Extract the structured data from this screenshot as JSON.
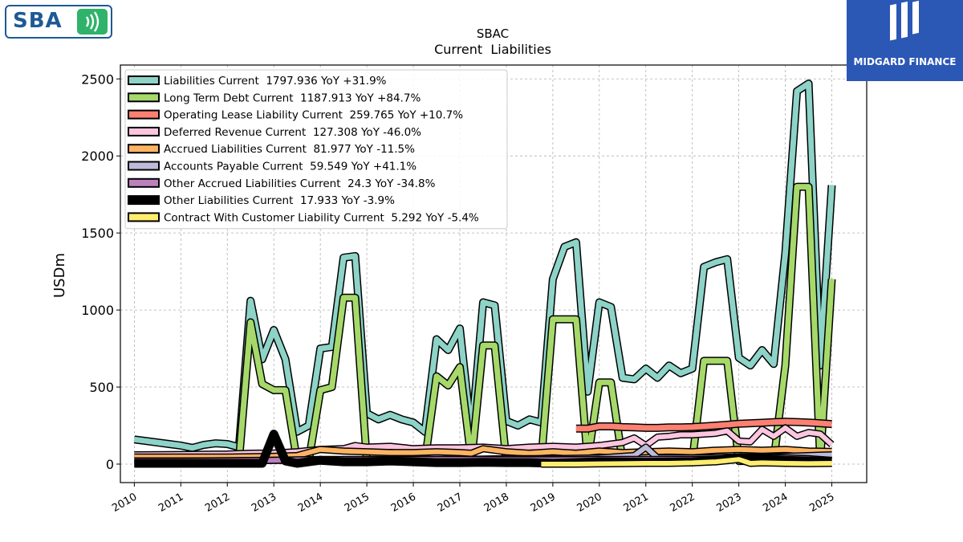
{
  "brand": {
    "logo_text": "SBA",
    "partner_text": "MIDGARD FINANCE"
  },
  "chart_data": {
    "type": "line",
    "title": "SBAC",
    "subtitle": "Current  Liabilities",
    "ylabel": "USDm",
    "xlabel": "",
    "xlim": [
      2009.7,
      2025.75
    ],
    "ylim": [
      -120,
      2590
    ],
    "yticks": [
      0,
      500,
      1000,
      1500,
      2000,
      2500
    ],
    "xticks": [
      2010,
      2011,
      2012,
      2013,
      2014,
      2015,
      2016,
      2017,
      2018,
      2019,
      2020,
      2021,
      2022,
      2023,
      2024,
      2025
    ],
    "grid": true,
    "legend_position": "top-left",
    "series": [
      {
        "name": "Liabilities Current",
        "legend": "Liabilities Current  1797.936 YoY +31.9%",
        "color": "#8dd3c7",
        "width": 7,
        "points": [
          [
            2010.0,
            160
          ],
          [
            2010.25,
            150
          ],
          [
            2010.5,
            140
          ],
          [
            2010.75,
            130
          ],
          [
            2011.0,
            120
          ],
          [
            2011.25,
            105
          ],
          [
            2011.5,
            125
          ],
          [
            2011.75,
            135
          ],
          [
            2012.0,
            130
          ],
          [
            2012.25,
            110
          ],
          [
            2012.5,
            1060
          ],
          [
            2012.75,
            680
          ],
          [
            2013.0,
            870
          ],
          [
            2013.25,
            680
          ],
          [
            2013.5,
            210
          ],
          [
            2013.75,
            250
          ],
          [
            2014.0,
            750
          ],
          [
            2014.25,
            760
          ],
          [
            2014.5,
            1340
          ],
          [
            2014.75,
            1350
          ],
          [
            2015.0,
            330
          ],
          [
            2015.25,
            290
          ],
          [
            2015.5,
            320
          ],
          [
            2015.75,
            290
          ],
          [
            2016.0,
            270
          ],
          [
            2016.25,
            210
          ],
          [
            2016.5,
            810
          ],
          [
            2016.75,
            740
          ],
          [
            2017.0,
            880
          ],
          [
            2017.25,
            190
          ],
          [
            2017.5,
            1050
          ],
          [
            2017.75,
            1030
          ],
          [
            2018.0,
            280
          ],
          [
            2018.25,
            250
          ],
          [
            2018.5,
            290
          ],
          [
            2018.75,
            270
          ],
          [
            2019.0,
            1200
          ],
          [
            2019.25,
            1410
          ],
          [
            2019.5,
            1440
          ],
          [
            2019.75,
            470
          ],
          [
            2020.0,
            1050
          ],
          [
            2020.25,
            1020
          ],
          [
            2020.5,
            560
          ],
          [
            2020.75,
            550
          ],
          [
            2021.0,
            620
          ],
          [
            2021.25,
            560
          ],
          [
            2021.5,
            640
          ],
          [
            2021.75,
            590
          ],
          [
            2022.0,
            620
          ],
          [
            2022.25,
            1280
          ],
          [
            2022.5,
            1310
          ],
          [
            2022.75,
            1330
          ],
          [
            2023.0,
            690
          ],
          [
            2023.25,
            640
          ],
          [
            2023.5,
            740
          ],
          [
            2023.75,
            650
          ],
          [
            2024.0,
            1370
          ],
          [
            2024.25,
            2420
          ],
          [
            2024.5,
            2470
          ],
          [
            2024.75,
            640
          ],
          [
            2025.0,
            1810
          ]
        ]
      },
      {
        "name": "Long Term Debt Current",
        "legend": "Long Term Debt Current  1187.913 YoY +84.7%",
        "color": "#a6d96a",
        "width": 7,
        "points": [
          [
            2012.25,
            20
          ],
          [
            2012.5,
            920
          ],
          [
            2012.75,
            520
          ],
          [
            2013.0,
            480
          ],
          [
            2013.25,
            480
          ],
          [
            2013.5,
            20
          ],
          [
            2013.75,
            20
          ],
          [
            2014.0,
            480
          ],
          [
            2014.25,
            500
          ],
          [
            2014.5,
            1080
          ],
          [
            2014.75,
            1080
          ],
          [
            2015.0,
            20
          ],
          [
            2015.5,
            20
          ],
          [
            2016.0,
            20
          ],
          [
            2016.25,
            20
          ],
          [
            2016.5,
            570
          ],
          [
            2016.75,
            510
          ],
          [
            2017.0,
            630
          ],
          [
            2017.25,
            20
          ],
          [
            2017.5,
            770
          ],
          [
            2017.75,
            770
          ],
          [
            2018.0,
            20
          ],
          [
            2018.75,
            20
          ],
          [
            2019.0,
            940
          ],
          [
            2019.25,
            940
          ],
          [
            2019.5,
            940
          ],
          [
            2019.75,
            20
          ],
          [
            2020.0,
            530
          ],
          [
            2020.25,
            530
          ],
          [
            2020.5,
            20
          ],
          [
            2021.0,
            20
          ],
          [
            2022.0,
            20
          ],
          [
            2022.25,
            670
          ],
          [
            2022.5,
            670
          ],
          [
            2022.75,
            670
          ],
          [
            2023.0,
            20
          ],
          [
            2023.75,
            20
          ],
          [
            2024.0,
            640
          ],
          [
            2024.25,
            1800
          ],
          [
            2024.5,
            1800
          ],
          [
            2024.75,
            20
          ],
          [
            2025.0,
            1200
          ]
        ]
      },
      {
        "name": "Operating Lease Liability Current",
        "legend": "Operating Lease Liability Current  259.765 YoY +10.7%",
        "color": "#fb8072",
        "width": 7,
        "points": [
          [
            2019.5,
            230
          ],
          [
            2019.75,
            230
          ],
          [
            2020.0,
            245
          ],
          [
            2020.25,
            245
          ],
          [
            2020.5,
            240
          ],
          [
            2020.75,
            238
          ],
          [
            2021.0,
            235
          ],
          [
            2021.25,
            235
          ],
          [
            2021.5,
            238
          ],
          [
            2021.75,
            238
          ],
          [
            2022.0,
            240
          ],
          [
            2022.25,
            245
          ],
          [
            2022.5,
            250
          ],
          [
            2022.75,
            255
          ],
          [
            2023.0,
            262
          ],
          [
            2023.25,
            265
          ],
          [
            2023.5,
            268
          ],
          [
            2023.75,
            272
          ],
          [
            2024.0,
            275
          ],
          [
            2024.25,
            273
          ],
          [
            2024.5,
            270
          ],
          [
            2024.75,
            265
          ],
          [
            2025.0,
            260
          ]
        ]
      },
      {
        "name": "Deferred Revenue Current",
        "legend": "Deferred Revenue Current  127.308 YoY -46.0%",
        "color": "#fcc5e0",
        "width": 6,
        "points": [
          [
            2010.0,
            60
          ],
          [
            2011.0,
            62
          ],
          [
            2012.0,
            65
          ],
          [
            2012.5,
            70
          ],
          [
            2013.0,
            72
          ],
          [
            2013.5,
            80
          ],
          [
            2014.0,
            95
          ],
          [
            2014.5,
            100
          ],
          [
            2014.75,
            120
          ],
          [
            2015.0,
            110
          ],
          [
            2015.5,
            115
          ],
          [
            2016.0,
            100
          ],
          [
            2016.5,
            105
          ],
          [
            2017.0,
            105
          ],
          [
            2017.5,
            110
          ],
          [
            2018.0,
            100
          ],
          [
            2018.5,
            110
          ],
          [
            2019.0,
            115
          ],
          [
            2019.5,
            110
          ],
          [
            2020.0,
            120
          ],
          [
            2020.25,
            130
          ],
          [
            2020.5,
            140
          ],
          [
            2020.75,
            170
          ],
          [
            2021.0,
            120
          ],
          [
            2021.25,
            175
          ],
          [
            2021.5,
            180
          ],
          [
            2021.75,
            190
          ],
          [
            2022.0,
            190
          ],
          [
            2022.5,
            200
          ],
          [
            2022.75,
            215
          ],
          [
            2023.0,
            150
          ],
          [
            2023.25,
            145
          ],
          [
            2023.5,
            225
          ],
          [
            2023.75,
            180
          ],
          [
            2024.0,
            235
          ],
          [
            2024.25,
            180
          ],
          [
            2024.5,
            205
          ],
          [
            2024.75,
            195
          ],
          [
            2025.0,
            127
          ]
        ]
      },
      {
        "name": "Accrued Liabilities Current",
        "legend": "Accrued Liabilities Current  81.977 YoY -11.5%",
        "color": "#fdb462",
        "width": 6,
        "points": [
          [
            2010.0,
            45
          ],
          [
            2011.0,
            45
          ],
          [
            2012.0,
            45
          ],
          [
            2013.0,
            50
          ],
          [
            2013.5,
            55
          ],
          [
            2014.0,
            95
          ],
          [
            2014.5,
            85
          ],
          [
            2015.0,
            80
          ],
          [
            2015.5,
            75
          ],
          [
            2016.0,
            75
          ],
          [
            2016.5,
            80
          ],
          [
            2017.0,
            75
          ],
          [
            2017.25,
            70
          ],
          [
            2017.5,
            100
          ],
          [
            2018.0,
            80
          ],
          [
            2018.5,
            70
          ],
          [
            2019.0,
            80
          ],
          [
            2019.5,
            70
          ],
          [
            2020.0,
            85
          ],
          [
            2020.5,
            75
          ],
          [
            2021.0,
            80
          ],
          [
            2021.5,
            85
          ],
          [
            2022.0,
            80
          ],
          [
            2022.5,
            90
          ],
          [
            2023.0,
            95
          ],
          [
            2023.5,
            90
          ],
          [
            2024.0,
            95
          ],
          [
            2024.5,
            85
          ],
          [
            2025.0,
            82
          ]
        ]
      },
      {
        "name": "Accounts Payable Current",
        "legend": "Accounts Payable Current  59.549 YoY +41.1%",
        "color": "#bebada",
        "width": 6,
        "points": [
          [
            2010.0,
            20
          ],
          [
            2011.0,
            20
          ],
          [
            2012.0,
            20
          ],
          [
            2013.0,
            25
          ],
          [
            2014.0,
            25
          ],
          [
            2015.0,
            25
          ],
          [
            2016.0,
            30
          ],
          [
            2017.0,
            30
          ],
          [
            2018.0,
            35
          ],
          [
            2019.0,
            35
          ],
          [
            2020.0,
            40
          ],
          [
            2020.75,
            55
          ],
          [
            2021.0,
            110
          ],
          [
            2021.25,
            40
          ],
          [
            2022.0,
            40
          ],
          [
            2023.0,
            45
          ],
          [
            2024.0,
            50
          ],
          [
            2025.0,
            60
          ]
        ]
      },
      {
        "name": "Other Accrued Liabilities Current",
        "legend": "Other Accrued Liabilities Current  24.3 YoY -34.8%",
        "color": "#bc80bd",
        "width": 6,
        "points": [
          [
            2010.0,
            20
          ],
          [
            2011.0,
            20
          ],
          [
            2012.0,
            22
          ],
          [
            2013.0,
            25
          ],
          [
            2014.0,
            30
          ],
          [
            2015.0,
            30
          ],
          [
            2016.0,
            30
          ],
          [
            2017.0,
            30
          ],
          [
            2018.0,
            28
          ],
          [
            2019.0,
            28
          ],
          [
            2020.0,
            30
          ],
          [
            2021.0,
            30
          ],
          [
            2022.0,
            30
          ],
          [
            2023.0,
            35
          ],
          [
            2023.5,
            45
          ],
          [
            2024.0,
            40
          ],
          [
            2024.5,
            35
          ],
          [
            2025.0,
            24
          ]
        ]
      },
      {
        "name": "Other Liabilities Current",
        "legend": "Other Liabilities Current  17.933 YoY -3.9%",
        "color": "#000000",
        "width": 8,
        "points": [
          [
            2010.0,
            5
          ],
          [
            2011.0,
            5
          ],
          [
            2012.0,
            5
          ],
          [
            2012.75,
            5
          ],
          [
            2013.0,
            195
          ],
          [
            2013.25,
            20
          ],
          [
            2013.5,
            5
          ],
          [
            2014.0,
            25
          ],
          [
            2014.5,
            15
          ],
          [
            2015.0,
            15
          ],
          [
            2015.5,
            20
          ],
          [
            2016.0,
            15
          ],
          [
            2016.5,
            10
          ],
          [
            2017.0,
            10
          ],
          [
            2017.5,
            12
          ],
          [
            2018.0,
            10
          ],
          [
            2018.5,
            10
          ],
          [
            2019.0,
            5
          ],
          [
            2020.0,
            15
          ],
          [
            2021.0,
            12
          ],
          [
            2022.0,
            15
          ],
          [
            2022.5,
            25
          ],
          [
            2023.0,
            40
          ],
          [
            2023.5,
            35
          ],
          [
            2024.0,
            25
          ],
          [
            2024.5,
            20
          ],
          [
            2025.0,
            18
          ]
        ]
      },
      {
        "name": "Contract With Customer Liability Current",
        "legend": "Contract With Customer Liability Current  5.292 YoY -5.4%",
        "color": "#ffed6f",
        "width": 6,
        "points": [
          [
            2018.75,
            0
          ],
          [
            2019.5,
            0
          ],
          [
            2020.0,
            2
          ],
          [
            2020.5,
            3
          ],
          [
            2021.0,
            5
          ],
          [
            2021.5,
            5
          ],
          [
            2022.0,
            8
          ],
          [
            2022.5,
            15
          ],
          [
            2023.0,
            30
          ],
          [
            2023.25,
            5
          ],
          [
            2023.5,
            8
          ],
          [
            2024.0,
            5
          ],
          [
            2024.5,
            3
          ],
          [
            2025.0,
            5
          ]
        ]
      }
    ]
  }
}
